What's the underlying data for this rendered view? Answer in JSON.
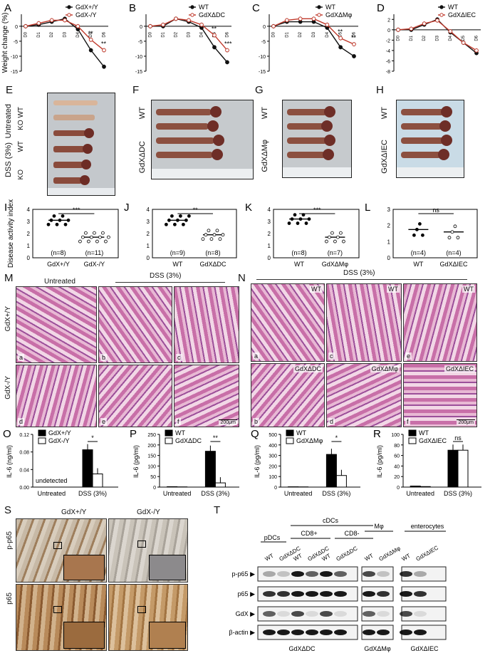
{
  "panel_letters": [
    "A",
    "B",
    "C",
    "D",
    "E",
    "F",
    "G",
    "H",
    "I",
    "J",
    "K",
    "L",
    "M",
    "N",
    "O",
    "P",
    "Q",
    "R",
    "S",
    "T"
  ],
  "weight": {
    "ylabel": "Weight change (%)",
    "xticks": [
      "D0",
      "D1",
      "D2",
      "D3",
      "D4",
      "D5",
      "D6"
    ],
    "panels": [
      {
        "letter": "A",
        "legend": [
          "GdX+/Y",
          "GdX-/Y"
        ],
        "yticks": [
          0,
          -5,
          -10,
          -15
        ],
        "ylim": [
          -15,
          4
        ],
        "sig": [
          "**",
          "**"
        ]
      },
      {
        "letter": "B",
        "legend": [
          "WT",
          "GdXΔDC"
        ],
        "yticks": [
          0,
          -5,
          -10,
          -15
        ],
        "ylim": [
          -15,
          4
        ],
        "sig": [
          "**",
          "***"
        ]
      },
      {
        "letter": "C",
        "legend": [
          "WT",
          "GdXΔMφ"
        ],
        "yticks": [
          0,
          -5,
          -10,
          -15
        ],
        "ylim": [
          -15,
          4
        ],
        "sig": [
          "**",
          "**"
        ]
      },
      {
        "letter": "D",
        "legend": [
          "WT",
          "GdXΔIEC"
        ],
        "yticks": [
          2,
          0,
          -2,
          -4,
          -6,
          -8
        ],
        "ylim": [
          -8,
          3
        ],
        "sig": []
      }
    ]
  },
  "chart_data": [
    {
      "type": "line",
      "panel": "A",
      "ylabel": "Weight change (%)",
      "x": [
        "D0",
        "D1",
        "D2",
        "D3",
        "D4",
        "D5",
        "D6"
      ],
      "ylim": [
        -15,
        4
      ],
      "series": [
        {
          "name": "GdX+/Y",
          "values": [
            0,
            0.5,
            1.5,
            2.5,
            -1,
            -8,
            -13.5
          ]
        },
        {
          "name": "GdX-/Y",
          "values": [
            0,
            1,
            2,
            2,
            0,
            -4.5,
            -8
          ]
        }
      ]
    },
    {
      "type": "line",
      "panel": "B",
      "x": [
        "D0",
        "D1",
        "D2",
        "D3",
        "D4",
        "D5",
        "D6"
      ],
      "ylim": [
        -15,
        4
      ],
      "series": [
        {
          "name": "WT",
          "values": [
            0,
            0,
            2.5,
            1.5,
            -0.5,
            -7,
            -12
          ]
        },
        {
          "name": "GdXΔDC",
          "values": [
            0,
            0.5,
            2.5,
            2,
            0.5,
            -3,
            -8
          ]
        }
      ]
    },
    {
      "type": "line",
      "panel": "C",
      "x": [
        "D0",
        "D1",
        "D2",
        "D3",
        "D4",
        "D5",
        "D6"
      ],
      "ylim": [
        -15,
        4
      ],
      "series": [
        {
          "name": "WT",
          "values": [
            0,
            1.5,
            1.5,
            1.5,
            -0.5,
            -7,
            -10
          ]
        },
        {
          "name": "GdXΔMφ",
          "values": [
            0,
            2,
            2.5,
            2.5,
            0.5,
            -4,
            -6
          ]
        }
      ]
    },
    {
      "type": "line",
      "panel": "D",
      "x": [
        "D0",
        "D1",
        "D2",
        "D3",
        "D4",
        "D5",
        "D6"
      ],
      "ylim": [
        -8,
        3
      ],
      "series": [
        {
          "name": "WT",
          "values": [
            0,
            0,
            1,
            2,
            -0.5,
            -2.5,
            -4.5
          ]
        },
        {
          "name": "GdXΔIEC",
          "values": [
            0,
            0.2,
            1.2,
            1.8,
            -0.3,
            -2.5,
            -4
          ]
        }
      ]
    },
    {
      "type": "scatter",
      "panel": "I",
      "ylabel": "Disease activity index",
      "categories": [
        "GdX+/Y",
        "GdX-/Y"
      ],
      "ylim": [
        0,
        4
      ],
      "series": [
        {
          "name": "GdX+/Y",
          "values": [
            3.1
          ]
        },
        {
          "name": "GdX-/Y",
          "values": [
            1.7
          ]
        }
      ]
    },
    {
      "type": "scatter",
      "panel": "J",
      "categories": [
        "WT",
        "GdXΔDC"
      ],
      "ylim": [
        0,
        4
      ],
      "series": [
        {
          "name": "WT",
          "values": [
            3.1
          ]
        },
        {
          "name": "GdXΔDC",
          "values": [
            1.9
          ]
        }
      ]
    },
    {
      "type": "scatter",
      "panel": "K",
      "categories": [
        "WT",
        "GdXΔMφ"
      ],
      "ylim": [
        0,
        4
      ],
      "series": [
        {
          "name": "WT",
          "values": [
            3.2
          ]
        },
        {
          "name": "GdXΔMφ",
          "values": [
            1.7
          ]
        }
      ]
    },
    {
      "type": "scatter",
      "panel": "L",
      "categories": [
        "WT",
        "GdXΔIEC"
      ],
      "ylim": [
        0,
        3
      ],
      "series": [
        {
          "name": "WT",
          "values": [
            1.75
          ]
        },
        {
          "name": "GdXΔIEC",
          "values": [
            1.6
          ]
        }
      ]
    },
    {
      "type": "bar",
      "panel": "O",
      "ylabel": "IL-6 (ng/ml)",
      "categories": [
        "Untreated",
        "DSS (3%)"
      ],
      "ylim": [
        0,
        0.12
      ],
      "series": [
        {
          "name": "GdX+/Y",
          "values": [
            0,
            0.085
          ]
        },
        {
          "name": "GdX-/Y",
          "values": [
            0,
            0.03
          ]
        }
      ]
    },
    {
      "type": "bar",
      "panel": "P",
      "ylabel": "IL-6 (pg/ml)",
      "categories": [
        "Untreated",
        "DSS (3%)"
      ],
      "ylim": [
        0,
        250
      ],
      "series": [
        {
          "name": "WT",
          "values": [
            2,
            170
          ]
        },
        {
          "name": "GdXΔDC",
          "values": [
            1,
            20
          ]
        }
      ]
    },
    {
      "type": "bar",
      "panel": "Q",
      "ylabel": "IL-6 (pg/ml)",
      "categories": [
        "Untreated",
        "DSS (3%)"
      ],
      "ylim": [
        0,
        500
      ],
      "series": [
        {
          "name": "WT",
          "values": [
            3,
            310
          ]
        },
        {
          "name": "GdXΔMφ",
          "values": [
            2,
            110
          ]
        }
      ]
    },
    {
      "type": "bar",
      "panel": "R",
      "ylabel": "IL-6 (pg/ml)",
      "categories": [
        "Untreated",
        "DSS (3%)"
      ],
      "ylim": [
        0,
        100
      ],
      "series": [
        {
          "name": "WT",
          "values": [
            2,
            70
          ]
        },
        {
          "name": "GdXΔIEC",
          "values": [
            1,
            70
          ]
        }
      ]
    }
  ],
  "photos": {
    "E": {
      "labels": [
        "Untreated",
        "DSS (3%)",
        "KO WT",
        "WT",
        "KO"
      ]
    },
    "F": {
      "labels": [
        "WT",
        "GdXΔDC"
      ]
    },
    "G": {
      "labels": [
        "WT",
        "GdXΔMφ"
      ]
    },
    "H": {
      "labels": [
        "WT",
        "GdXΔIEC"
      ]
    }
  },
  "dai": {
    "ylabel": "Disease activity index",
    "panels": [
      {
        "letter": "I",
        "cats": [
          "GdX+/Y",
          "GdX-/Y"
        ],
        "n": [
          "(n=8)",
          "(n=11)"
        ],
        "sig": "***",
        "yticks": [
          0,
          1,
          2,
          3,
          4
        ]
      },
      {
        "letter": "J",
        "cats": [
          "WT",
          "GdXΔDC"
        ],
        "n": [
          "(n=9)",
          "(n=8)"
        ],
        "sig": "**",
        "yticks": [
          0,
          1,
          2,
          3,
          4
        ]
      },
      {
        "letter": "K",
        "cats": [
          "WT",
          "GdXΔMφ"
        ],
        "n": [
          "(n=8)",
          "(n=7)"
        ],
        "sig": "***",
        "yticks": [
          0,
          1,
          2,
          3,
          4
        ]
      },
      {
        "letter": "L",
        "cats": [
          "WT",
          "GdXΔIEC"
        ],
        "n": [
          "(n=4)",
          "(n=4)"
        ],
        "sig": "ns",
        "yticks": [
          0,
          1,
          2,
          3
        ]
      }
    ]
  },
  "histology": {
    "M": {
      "untreated": "Untreated",
      "dss": "DSS (3%)",
      "row1": "GdX+/Y",
      "row2": "GdX-/Y",
      "subs": [
        "a",
        "b",
        "c",
        "d",
        "e",
        "f"
      ],
      "scale": "200μm"
    },
    "N": {
      "dss": "DSS (3%)",
      "top": [
        "WT",
        "WT",
        "WT"
      ],
      "bottom": [
        "GdXΔDC",
        "GdXΔMφ",
        "GdXΔIEC"
      ],
      "subs": [
        "a",
        "c",
        "e",
        "b",
        "d",
        "f"
      ],
      "scale": "200μm"
    }
  },
  "il6": {
    "panels": [
      {
        "letter": "O",
        "ylabel": "IL-6 (ng/ml)",
        "legend": [
          "GdX+/Y",
          "GdX-/Y"
        ],
        "yticks": [
          "0.00",
          "0.04",
          "0.08",
          "0.12"
        ],
        "note": "undetected",
        "sig": "*"
      },
      {
        "letter": "P",
        "ylabel": "IL-6 (pg/ml)",
        "legend": [
          "WT",
          "GdXΔDC"
        ],
        "yticks": [
          "0",
          "50",
          "100",
          "150",
          "200",
          "250"
        ],
        "sig": "**"
      },
      {
        "letter": "Q",
        "ylabel": "IL-6 (pg/ml)",
        "legend": [
          "WT",
          "GdXΔMφ"
        ],
        "yticks": [
          "0",
          "100",
          "200",
          "300",
          "400",
          "500"
        ],
        "sig": "*"
      },
      {
        "letter": "R",
        "ylabel": "IL-6 (pg/ml)",
        "legend": [
          "WT",
          "GdXΔIEC"
        ],
        "yticks": [
          "0",
          "20",
          "40",
          "60",
          "80",
          "100"
        ],
        "sig": "ns"
      }
    ],
    "cats": [
      "Untreated",
      "DSS (3%)"
    ]
  },
  "ihc": {
    "cols": [
      "GdX+/Y",
      "GdX-/Y"
    ],
    "rows": [
      "p-p65",
      "p65"
    ]
  },
  "western": {
    "groups": [
      "pDCs",
      "cDCs",
      "Mφ",
      "enterocytes"
    ],
    "subgroups": [
      "CD8+",
      "CD8-"
    ],
    "lanes": [
      "WT",
      "GdXΔDC",
      "WT",
      "GdXΔDC",
      "WT",
      "GdXΔDC",
      "WT",
      "GdXΔMφ",
      "WT",
      "GdXΔIEC"
    ],
    "rows": [
      "p-p65",
      "p65",
      "GdX",
      "β-actin"
    ],
    "bottom": [
      "GdXΔDC",
      "GdXΔMφ",
      "GdXΔIEC"
    ]
  },
  "colors": {
    "black": "#111111",
    "red": "#c0392b",
    "hetissue": "#c86fa8",
    "tissue": "#e9b7d2"
  }
}
